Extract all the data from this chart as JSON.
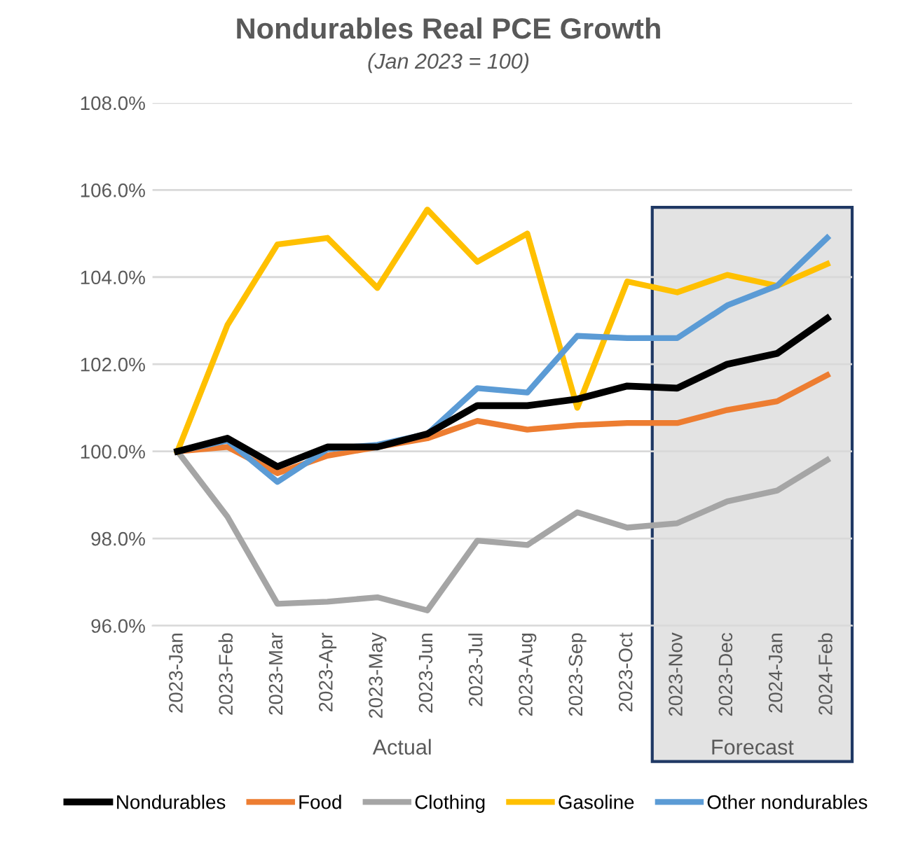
{
  "chart_data": {
    "type": "line",
    "title": "Nondurables Real PCE Growth",
    "subtitle": "(Jan 2023 = 100)",
    "categories": [
      "2023-Jan",
      "2023-Feb",
      "2023-Mar",
      "2023-Apr",
      "2023-May",
      "2023-Jun",
      "2023-Jul",
      "2023-Aug",
      "2023-Sep",
      "2023-Oct",
      "2023-Nov",
      "2023-Dec",
      "2024-Jan",
      "2024-Feb"
    ],
    "series": [
      {
        "name": "Nondurables",
        "color": "#000000",
        "values": [
          100,
          100.3,
          99.65,
          100.1,
          100.1,
          100.4,
          101.05,
          101.05,
          101.2,
          101.5,
          101.45,
          102.0,
          102.25,
          103.05
        ]
      },
      {
        "name": "Food",
        "color": "#ed7d31",
        "values": [
          100,
          100.1,
          99.5,
          99.9,
          100.1,
          100.3,
          100.7,
          100.5,
          100.6,
          100.65,
          100.65,
          100.95,
          101.15,
          101.75
        ]
      },
      {
        "name": "Clothing",
        "color": "#a5a5a5",
        "values": [
          100,
          98.5,
          96.5,
          96.55,
          96.65,
          96.35,
          97.95,
          97.85,
          98.6,
          98.25,
          98.35,
          98.85,
          99.1,
          99.8
        ]
      },
      {
        "name": "Gasoline",
        "color": "#ffc000",
        "values": [
          100,
          102.9,
          104.75,
          104.9,
          103.75,
          105.55,
          104.35,
          105.0,
          101.0,
          103.9,
          103.65,
          104.05,
          103.8,
          104.3
        ]
      },
      {
        "name": "Other nondurables",
        "color": "#5b9bd5",
        "values": [
          100,
          100.25,
          99.3,
          100.05,
          100.15,
          100.4,
          101.45,
          101.35,
          102.65,
          102.6,
          102.6,
          103.35,
          103.8,
          104.9
        ]
      }
    ],
    "ylim": [
      96,
      108
    ],
    "yticks": [
      {
        "value": 96,
        "label": "96.0%"
      },
      {
        "value": 98,
        "label": "98.0%"
      },
      {
        "value": 100,
        "label": "100.0%"
      },
      {
        "value": 102,
        "label": "102.0%"
      },
      {
        "value": 104,
        "label": "104.0%"
      },
      {
        "value": 106,
        "label": "106.0%"
      },
      {
        "value": 108,
        "label": "108.0%"
      }
    ],
    "bands": [
      {
        "axis": "x",
        "from": "2023-Nov",
        "to": "2024-Feb",
        "label": "Forecast",
        "color": "#e3e3e3"
      }
    ],
    "annotations": [
      "Actual"
    ],
    "grid": "y",
    "legend": "bottom",
    "marker": "none",
    "line_style": "solid"
  }
}
